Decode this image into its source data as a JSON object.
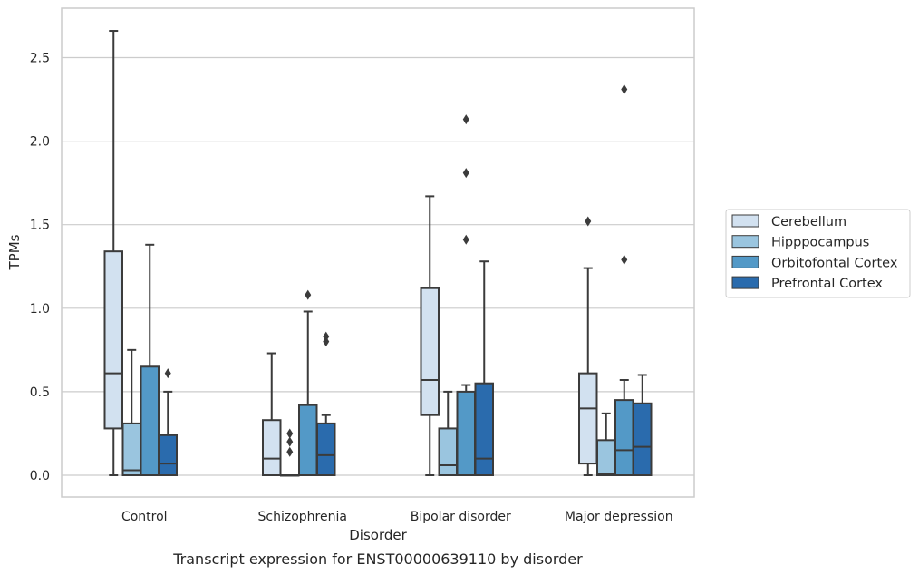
{
  "chart_data": {
    "type": "box",
    "xlabel": "Disorder",
    "ylabel": "TPMs",
    "caption": "Transcript expression for ENST00000639110 by disorder",
    "ylim": [
      -0.13,
      2.8
    ],
    "yticks": [
      "0.0",
      "0.5",
      "1.0",
      "1.5",
      "2.0",
      "2.5"
    ],
    "grid": "horizontal",
    "legend_position": "right",
    "categories": [
      "Control",
      "Schizophrenia",
      "Bipolar disorder",
      "Major depression"
    ],
    "series": [
      {
        "name": "Cerebellum",
        "color": "#d2e1f0",
        "boxes": [
          {
            "whislo": 0.0,
            "q1": 0.28,
            "med": 0.61,
            "q3": 1.34,
            "whishi": 2.66,
            "fliers": []
          },
          {
            "whislo": 0.0,
            "q1": 0.0,
            "med": 0.1,
            "q3": 0.33,
            "whishi": 0.73,
            "fliers": []
          },
          {
            "whislo": 0.0,
            "q1": 0.36,
            "med": 0.57,
            "q3": 1.12,
            "whishi": 1.67,
            "fliers": []
          },
          {
            "whislo": 0.0,
            "q1": 0.07,
            "med": 0.4,
            "q3": 0.61,
            "whishi": 1.24,
            "fliers": [
              1.52
            ]
          }
        ]
      },
      {
        "name": "Hipppocampus",
        "color": "#9ac5df",
        "boxes": [
          {
            "whislo": 0.0,
            "q1": 0.0,
            "med": 0.03,
            "q3": 0.31,
            "whishi": 0.75,
            "fliers": []
          },
          {
            "whislo": 0.0,
            "q1": 0.0,
            "med": 0.0,
            "q3": 0.0,
            "whishi": 0.0,
            "fliers": [
              0.14,
              0.2,
              0.25
            ]
          },
          {
            "whislo": 0.0,
            "q1": 0.0,
            "med": 0.06,
            "q3": 0.28,
            "whishi": 0.5,
            "fliers": []
          },
          {
            "whislo": 0.0,
            "q1": 0.0,
            "med": 0.01,
            "q3": 0.21,
            "whishi": 0.37,
            "fliers": []
          }
        ]
      },
      {
        "name": "Orbitofontal Cortex",
        "color": "#5399c7",
        "boxes": [
          {
            "whislo": 0.0,
            "q1": 0.0,
            "med": 0.0,
            "q3": 0.65,
            "whishi": 1.38,
            "fliers": []
          },
          {
            "whislo": 0.0,
            "q1": 0.0,
            "med": 0.0,
            "q3": 0.42,
            "whishi": 0.98,
            "fliers": [
              1.08
            ]
          },
          {
            "whislo": 0.0,
            "q1": 0.0,
            "med": 0.0,
            "q3": 0.5,
            "whishi": 0.54,
            "fliers": [
              1.41,
              1.81,
              2.13
            ]
          },
          {
            "whislo": 0.0,
            "q1": 0.0,
            "med": 0.15,
            "q3": 0.45,
            "whishi": 0.57,
            "fliers": [
              1.29,
              2.31
            ]
          }
        ]
      },
      {
        "name": "Prefrontal Cortex",
        "color": "#2a6bad",
        "boxes": [
          {
            "whislo": 0.0,
            "q1": 0.0,
            "med": 0.07,
            "q3": 0.24,
            "whishi": 0.5,
            "fliers": [
              0.61
            ]
          },
          {
            "whislo": 0.0,
            "q1": 0.0,
            "med": 0.12,
            "q3": 0.31,
            "whishi": 0.36,
            "fliers": [
              0.8,
              0.83
            ]
          },
          {
            "whislo": 0.0,
            "q1": 0.0,
            "med": 0.1,
            "q3": 0.55,
            "whishi": 1.28,
            "fliers": []
          },
          {
            "whislo": 0.0,
            "q1": 0.0,
            "med": 0.17,
            "q3": 0.43,
            "whishi": 0.6,
            "fliers": []
          }
        ]
      }
    ]
  }
}
